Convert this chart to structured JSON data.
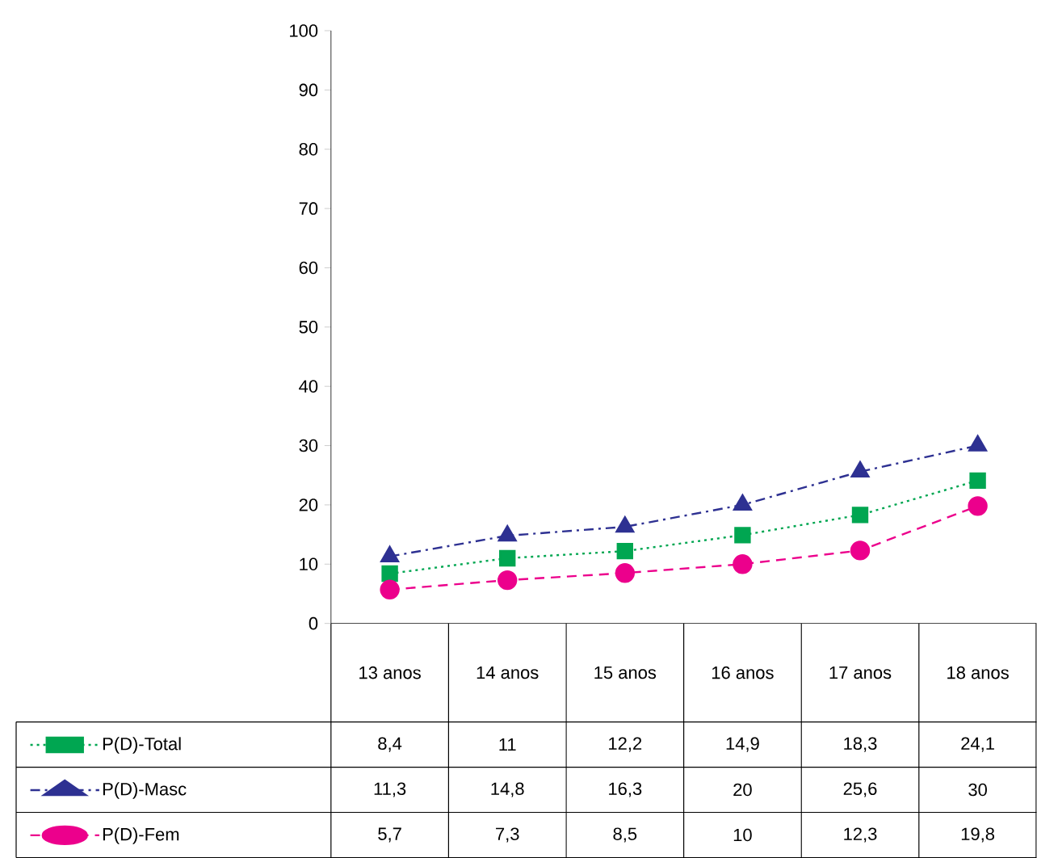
{
  "chart_data": {
    "type": "line",
    "categories": [
      "13 anos",
      "14 anos",
      "15 anos",
      "16 anos",
      "17 anos",
      "18 anos"
    ],
    "series": [
      {
        "name": "P(D)-Total",
        "color": "#00a651",
        "marker": "square",
        "line_style": "dotted",
        "values": [
          8.4,
          11,
          12.2,
          14.9,
          18.3,
          24.1
        ],
        "value_labels": [
          "8,4",
          "11",
          "12,2",
          "14,9",
          "18,3",
          "24,1"
        ]
      },
      {
        "name": "P(D)-Masc",
        "color": "#2e3192",
        "marker": "triangle",
        "line_style": "dashdot",
        "values": [
          11.3,
          14.8,
          16.3,
          20,
          25.6,
          30
        ],
        "value_labels": [
          "11,3",
          "14,8",
          "16,3",
          "20",
          "25,6",
          "30"
        ]
      },
      {
        "name": "P(D)-Fem",
        "color": "#ec008c",
        "marker": "circle",
        "line_style": "dashed",
        "values": [
          5.7,
          7.3,
          8.5,
          10,
          12.3,
          19.8
        ],
        "value_labels": [
          "5,7",
          "7,3",
          "8,5",
          "10",
          "12,3",
          "19,8"
        ]
      }
    ],
    "ylim": [
      0,
      100
    ],
    "yticks": [
      0,
      10,
      20,
      30,
      40,
      50,
      60,
      70,
      80,
      90,
      100
    ],
    "grid": false,
    "legend": "bottom left"
  }
}
